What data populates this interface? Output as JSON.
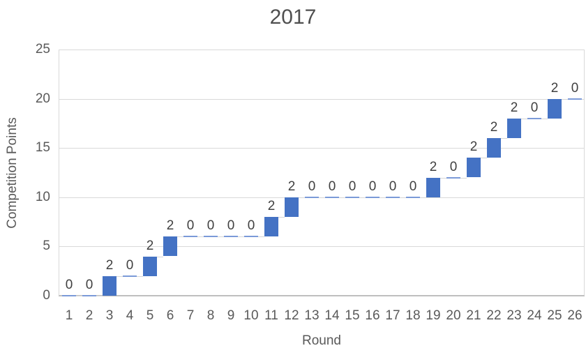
{
  "chart_data": {
    "type": "waterfall",
    "title": "2017",
    "xlabel": "Round",
    "ylabel": "Competition Points",
    "ylim": [
      0,
      25
    ],
    "grid": true,
    "legend": false,
    "yticks": [
      0,
      5,
      10,
      15,
      20,
      25
    ],
    "ytick_labels": [
      "0",
      "5",
      "10",
      "15",
      "20",
      "25"
    ],
    "categories": [
      1,
      2,
      3,
      4,
      5,
      6,
      7,
      8,
      9,
      10,
      11,
      12,
      13,
      14,
      15,
      16,
      17,
      18,
      19,
      20,
      21,
      22,
      23,
      24,
      25,
      26
    ],
    "xtick_labels": [
      "1",
      "2",
      "3",
      "4",
      "5",
      "6",
      "7",
      "8",
      "9",
      "10",
      "11",
      "12",
      "13",
      "14",
      "15",
      "16",
      "17",
      "18",
      "19",
      "20",
      "21",
      "22",
      "23",
      "24",
      "25",
      "26"
    ],
    "increments": [
      0,
      0,
      2,
      0,
      2,
      2,
      0,
      0,
      0,
      0,
      2,
      2,
      0,
      0,
      0,
      0,
      0,
      0,
      2,
      0,
      2,
      2,
      2,
      0,
      2,
      0
    ],
    "cumulative": [
      0,
      0,
      2,
      2,
      4,
      6,
      6,
      6,
      6,
      6,
      8,
      10,
      10,
      10,
      10,
      10,
      10,
      10,
      12,
      12,
      14,
      16,
      18,
      18,
      20,
      20
    ],
    "data_labels": [
      "0",
      "0",
      "2",
      "0",
      "2",
      "2",
      "0",
      "0",
      "0",
      "0",
      "2",
      "2",
      "0",
      "0",
      "0",
      "0",
      "0",
      "0",
      "2",
      "0",
      "2",
      "2",
      "2",
      "0",
      "2",
      "0"
    ]
  },
  "colors": {
    "bar": "#4472c4",
    "zero_dash": "#7b9ad8",
    "connector": "#d6d6d6",
    "gridline": "#d9d9d9",
    "axis_line": "#bfbfbf",
    "data_label": "#404040",
    "tick_label": "#595959",
    "title": "#4f4f4f"
  }
}
